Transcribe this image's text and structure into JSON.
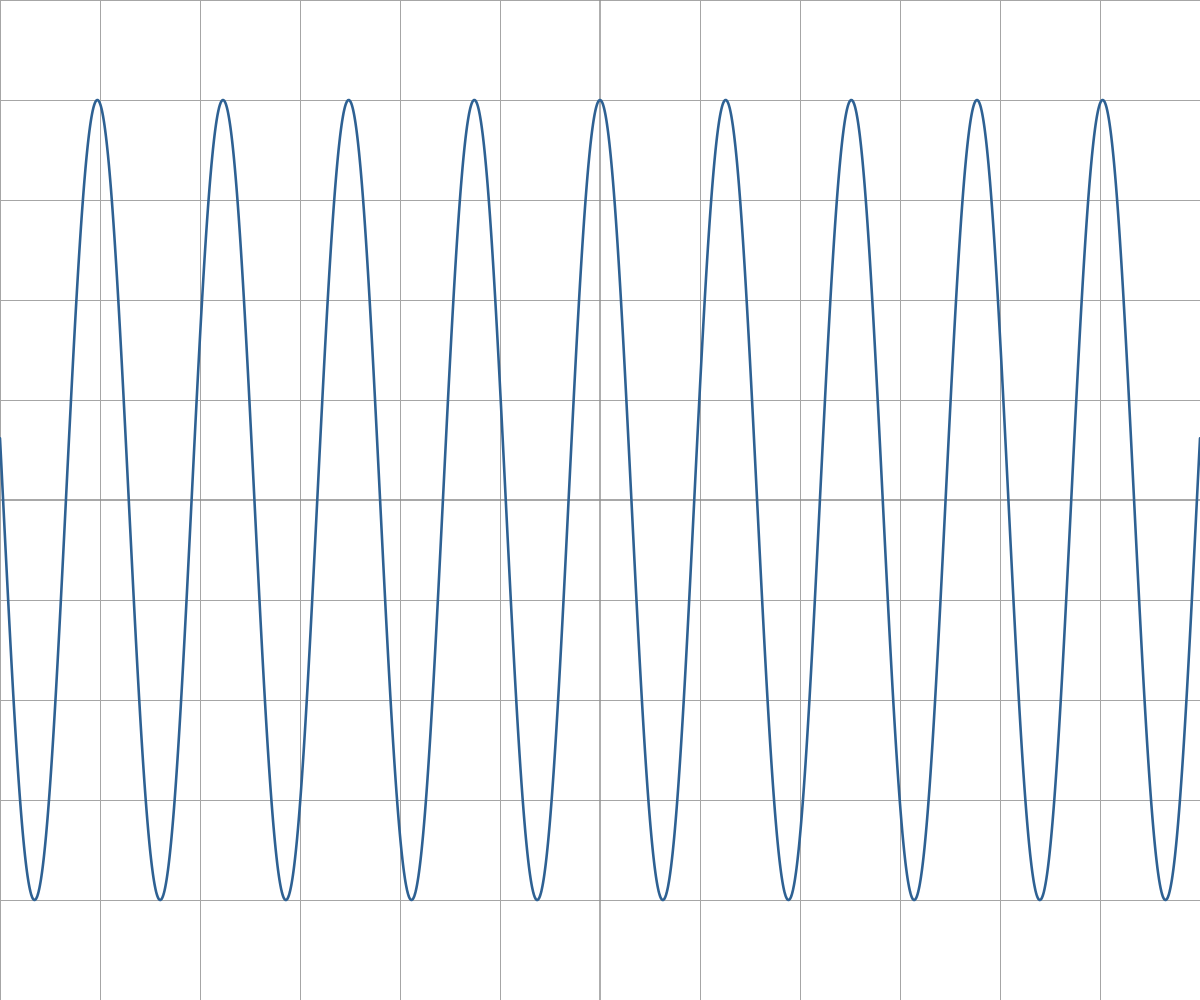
{
  "chart_data": {
    "type": "line",
    "title": "",
    "xlabel": "",
    "ylabel": "",
    "xlim": [
      -6,
      6
    ],
    "ylim": [
      -5,
      5
    ],
    "grid": true,
    "grid_step": 1,
    "legend": "none",
    "series": [
      {
        "function": "4*cos(5*x)",
        "amplitude": 4,
        "angular_frequency": 5,
        "x_start": -6,
        "x_end": 6,
        "color": "#2e6193"
      }
    ]
  }
}
